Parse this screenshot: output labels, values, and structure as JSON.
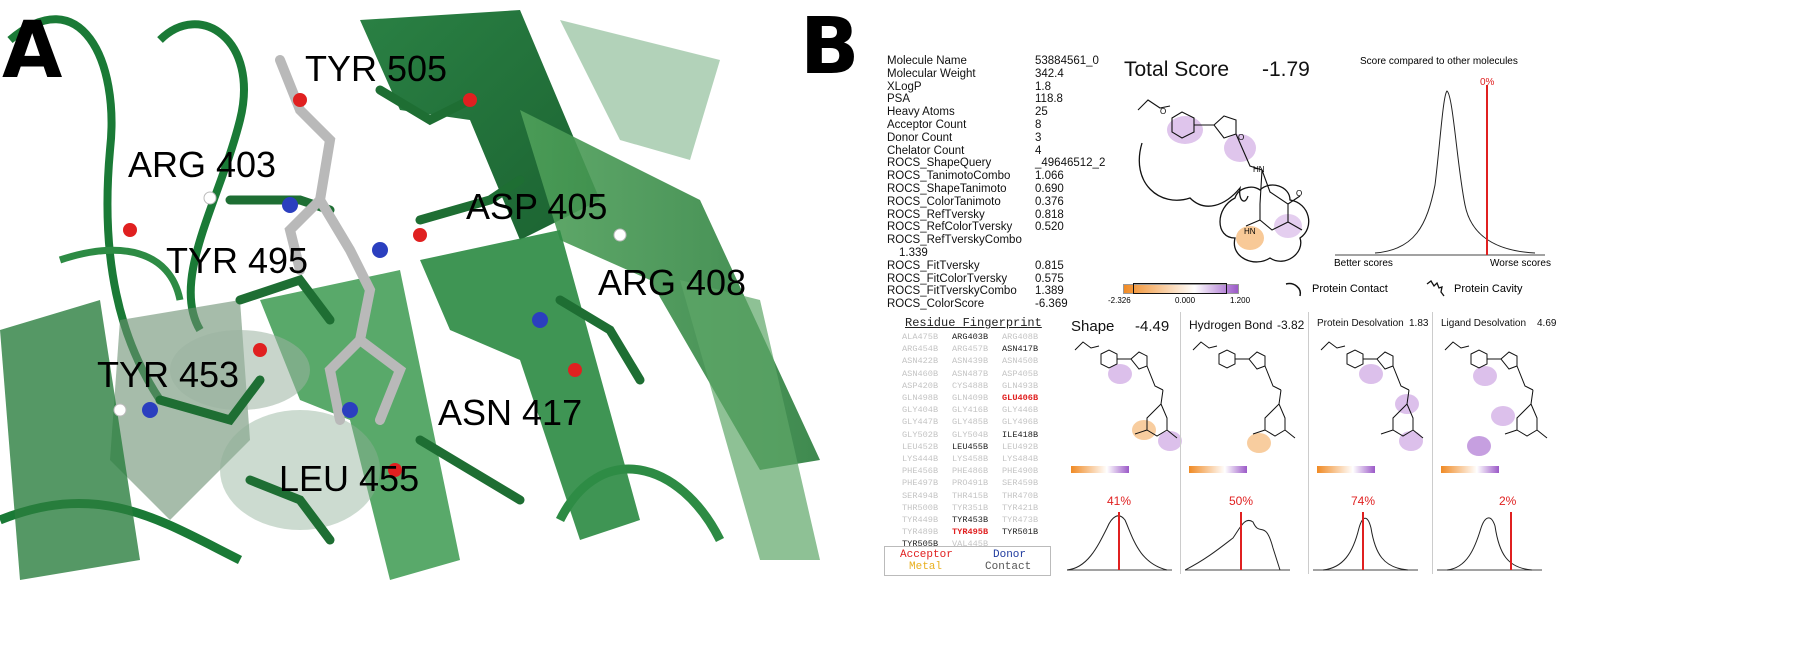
{
  "panel_a": {
    "letter": "A",
    "residues": [
      "TYR 505",
      "ARG 403",
      "ASP 405",
      "TYR 495",
      "ARG 408",
      "TYR 453",
      "ASN 417",
      "LEU 455"
    ]
  },
  "panel_b": {
    "letter": "B",
    "properties": [
      {
        "key": "Molecule Name",
        "value": "53884561_0"
      },
      {
        "key": "Molecular Weight",
        "value": "342.4"
      },
      {
        "key": "XLogP",
        "value": "1.8"
      },
      {
        "key": "PSA",
        "value": "118.8"
      },
      {
        "key": "Heavy Atoms",
        "value": "25"
      },
      {
        "key": "Acceptor Count",
        "value": "8"
      },
      {
        "key": "Donor Count",
        "value": "3"
      },
      {
        "key": "Chelator Count",
        "value": "4"
      },
      {
        "key": "ROCS_ShapeQuery",
        "value": "_49646512_2"
      },
      {
        "key": "ROCS_TanimotoCombo",
        "value": "1.066"
      },
      {
        "key": "ROCS_ShapeTanimoto",
        "value": "0.690"
      },
      {
        "key": "ROCS_ColorTanimoto",
        "value": "0.376"
      },
      {
        "key": "ROCS_RefTversky",
        "value": "0.818"
      },
      {
        "key": "ROCS_RefColorTversky",
        "value": "0.520"
      },
      {
        "key": "ROCS_RefTverskyCombo",
        "value": ""
      },
      {
        "key": "1.339",
        "value": ""
      },
      {
        "key": "ROCS_FitTversky",
        "value": "0.815"
      },
      {
        "key": "ROCS_FitColorTversky",
        "value": "0.575"
      },
      {
        "key": "ROCS_FitTverskyCombo",
        "value": "1.389"
      },
      {
        "key": "ROCS_ColorScore",
        "value": "-6.369"
      }
    ],
    "fingerprint_title": "Residue Fingerprint",
    "fingerprint": [
      [
        "ALA475B",
        "ARG403B",
        "ARG408B"
      ],
      [
        "ARG454B",
        "ARG457B",
        "ASN417B"
      ],
      [
        "ASN422B",
        "ASN439B",
        "ASN450B"
      ],
      [
        "ASN460B",
        "ASN487B",
        "ASP405B"
      ],
      [
        "ASP420B",
        "CYS488B",
        "GLN493B"
      ],
      [
        "GLN498B",
        "GLN409B",
        "GLU406B"
      ],
      [
        "GLY404B",
        "GLY416B",
        "GLY446B"
      ],
      [
        "GLY447B",
        "GLY485B",
        "GLY496B"
      ],
      [
        "GLY502B",
        "GLY504B",
        "ILE418B"
      ],
      [
        "LEU452B",
        "LEU455B",
        "LEU492B"
      ],
      [
        "LYS444B",
        "LYS458B",
        "LYS484B"
      ],
      [
        "PHE456B",
        "PHE486B",
        "PHE490B"
      ],
      [
        "PHE497B",
        "PRO491B",
        "SER459B"
      ],
      [
        "SER494B",
        "THR415B",
        "THR470B"
      ],
      [
        "THR500B",
        "TYR351B",
        "TYR421B"
      ],
      [
        "TYR449B",
        "TYR453B",
        "TYR473B"
      ],
      [
        "TYR489B",
        "TYR495B",
        "TYR501B"
      ],
      [
        "TYR505B",
        "VAL445B",
        ""
      ]
    ],
    "legend": {
      "acceptor": "Acceptor",
      "donor": "Donor",
      "metal": "Metal",
      "contact": "Contact"
    },
    "total_score_label": "Total Score",
    "total_score_value": "-1.79",
    "dist_title": "Score compared to other molecules",
    "dist_percent": "0%",
    "better_label": "Better scores",
    "worse_label": "Worse scores",
    "scale_min": "-2.326",
    "scale_mid": "0.000",
    "scale_max": "1.200",
    "protein_contact": "Protein Contact",
    "protein_cavity": "Protein Cavity",
    "subscores": [
      {
        "name": "Shape",
        "value": "-4.49",
        "percent": "41%"
      },
      {
        "name": "Hydrogen Bond",
        "value": "-3.82",
        "percent": "50%"
      },
      {
        "name": "Protein Desolvation",
        "value": "1.83",
        "percent": "74%"
      },
      {
        "name": "Ligand Desolvation",
        "value": "4.69",
        "percent": "2%"
      }
    ],
    "colors": {
      "acceptor": "#e02020",
      "donor": "#1f3a9e",
      "metal": "#e8b020",
      "contact": "#555555",
      "highlight": "#e02020",
      "orange": "#f08a24",
      "purple": "#9b59c8"
    }
  }
}
